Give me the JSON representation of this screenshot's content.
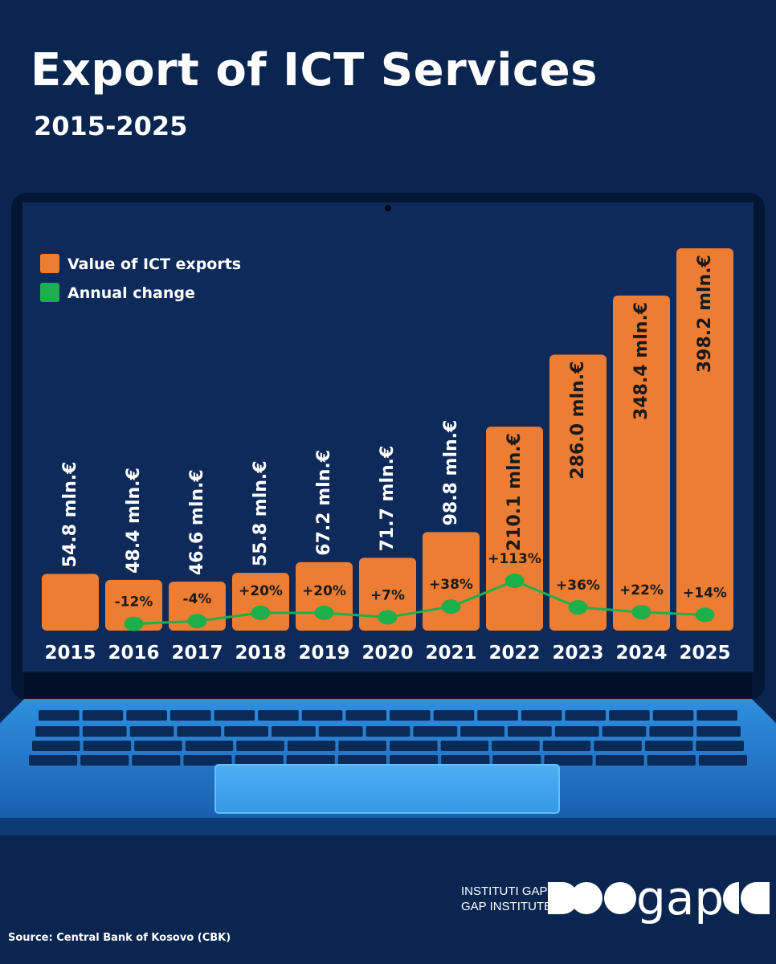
{
  "title": "Export of ICT Services",
  "subtitle": "2015-2025",
  "source": "Source: Central Bank of Kosovo (CBK)",
  "logo": {
    "line1": "INSTITUTI GAP",
    "line2": "GAP INSTITUTE",
    "wordmark": "gap"
  },
  "colors": {
    "background": "#0a2550",
    "bar": "#ee7d34",
    "line": "#1db04a",
    "screen": "#0d2a5a"
  },
  "chart_data": {
    "type": "bar",
    "title": "Export of ICT Services",
    "subtitle": "2015-2025",
    "categories": [
      "2015",
      "2016",
      "2017",
      "2018",
      "2019",
      "2020",
      "2021",
      "2022",
      "2023",
      "2024",
      "2025"
    ],
    "series": [
      {
        "name": "Value of ICT exports",
        "unit": "mln.€",
        "values": [
          54.8,
          48.4,
          46.6,
          55.8,
          67.2,
          71.7,
          98.8,
          210.1,
          286.0,
          348.4,
          398.2
        ],
        "labels": [
          "54.8 mln.€",
          "48.4 mln.€",
          "46.6 mln.€",
          "55.8 mln.€",
          "67.2 mln.€",
          "71.7 mln.€",
          "98.8 mln.€",
          "210.1 mln.€",
          "286.0 mln.€",
          "348.4 mln.€",
          "398.2 mln.€"
        ]
      },
      {
        "name": "Annual change",
        "unit": "%",
        "values": [
          null,
          -12,
          -4,
          20,
          20,
          7,
          38,
          113,
          36,
          22,
          14
        ],
        "labels": [
          "",
          "-12%",
          "-4%",
          "+20%",
          "+20%",
          "+7%",
          "+38%",
          "+113%",
          "+36%",
          "+22%",
          "+14%"
        ]
      }
    ],
    "legend": [
      "Value of ICT exports",
      "Annual change"
    ],
    "legend_position": "top-left",
    "ylim": [
      0,
      400
    ],
    "line_ylim": [
      -20,
      120
    ],
    "xlabel": "",
    "ylabel": ""
  }
}
